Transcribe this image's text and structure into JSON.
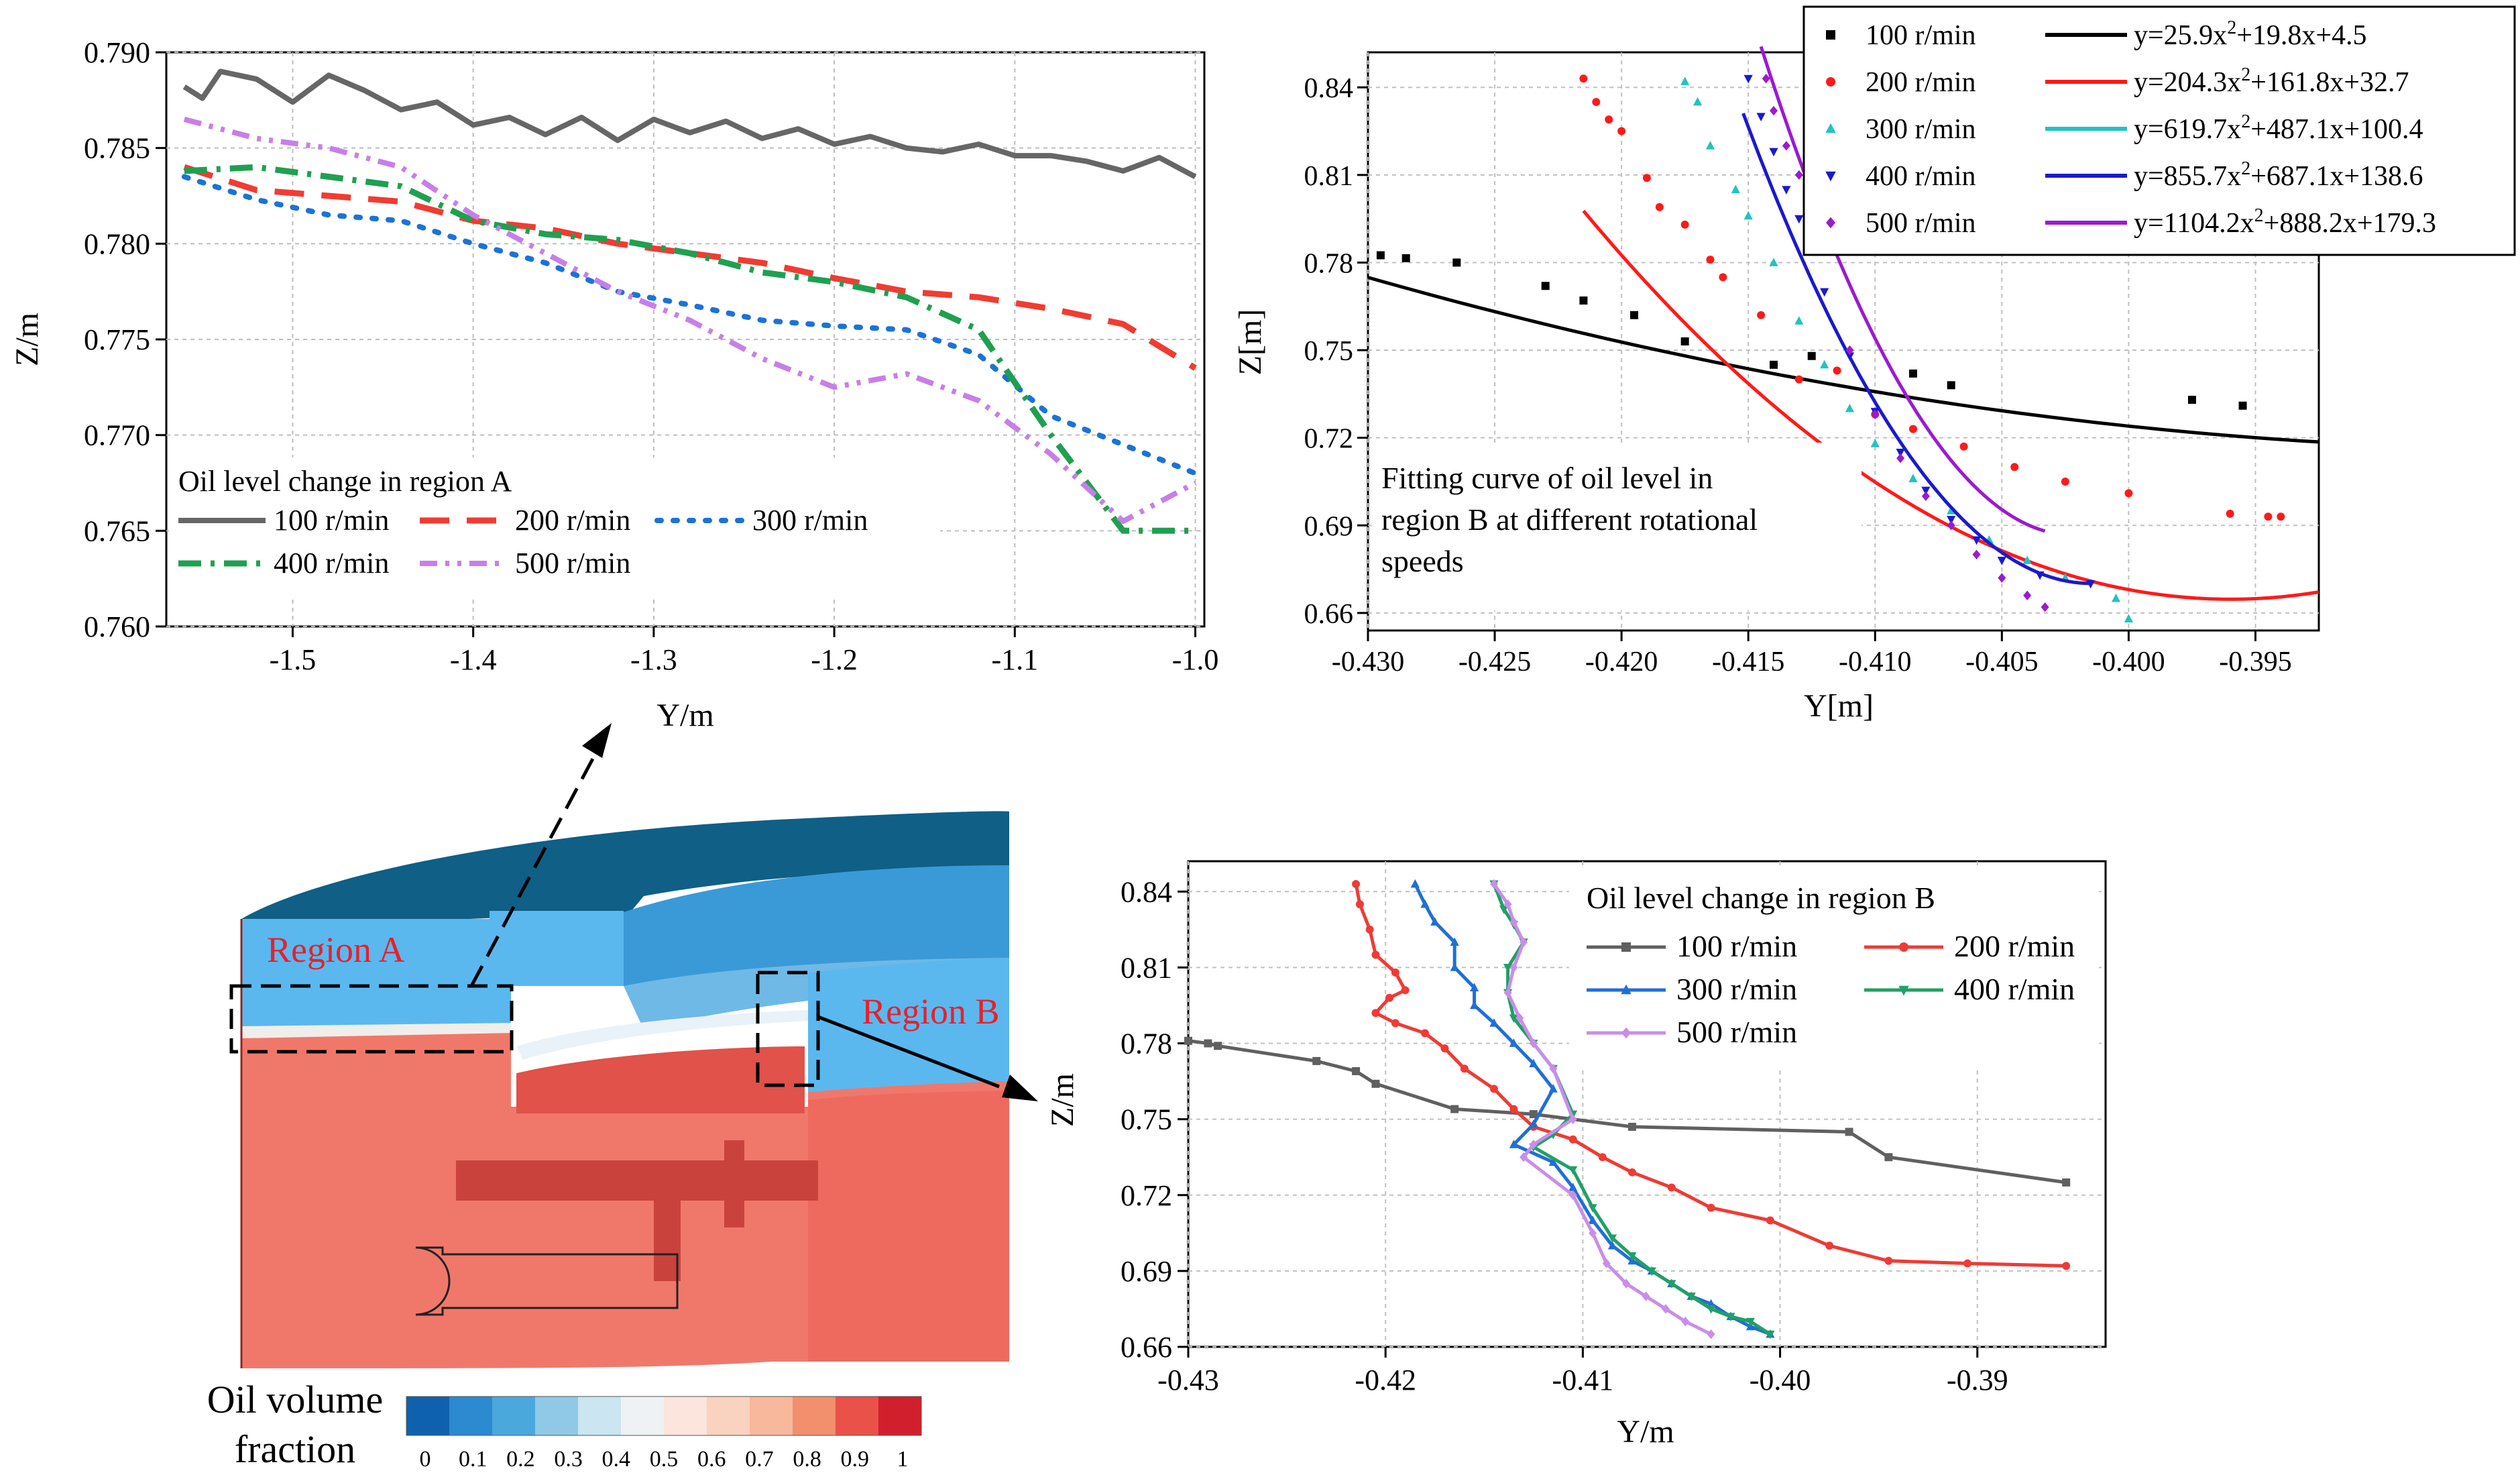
{
  "colors": {
    "gray": "#666666",
    "red": "#f03c32",
    "blue": "#1a73d8",
    "green": "#1fa050",
    "lilac": "#c77fe8",
    "black": "#000000",
    "fitred": "#ff1a1a",
    "cyan": "#22c3c3",
    "navy": "#1a1acc",
    "purple": "#9c1ad0",
    "c_gray": "#606060",
    "c_red": "#ee3b35",
    "c_blue": "#1f6fd6",
    "c_green": "#21a067",
    "c_lilac": "#c98ee8"
  },
  "chart_data": [
    {
      "id": "A",
      "type": "line",
      "title": "Oil level change in region A",
      "xlabel": "Y/m",
      "ylabel": "Z/m",
      "xlim": [
        -1.57,
        -0.995
      ],
      "ylim": [
        0.76,
        0.79
      ],
      "xticks": [
        "-1.5",
        "-1.4",
        "-1.3",
        "-1.2",
        "-1.1",
        "-1.0"
      ],
      "yticks": [
        "0.760",
        "0.765",
        "0.770",
        "0.775",
        "0.780",
        "0.785",
        "0.790"
      ],
      "grid": true,
      "legend": "lower-left",
      "series": [
        {
          "name": "100 r/min",
          "x": [
            -1.56,
            -1.55,
            -1.54,
            -1.52,
            -1.5,
            -1.48,
            -1.46,
            -1.44,
            -1.42,
            -1.4,
            -1.38,
            -1.36,
            -1.34,
            -1.32,
            -1.3,
            -1.28,
            -1.26,
            -1.24,
            -1.22,
            -1.2,
            -1.18,
            -1.16,
            -1.14,
            -1.12,
            -1.1,
            -1.08,
            -1.06,
            -1.04,
            -1.02,
            -1.0
          ],
          "values": [
            0.7882,
            0.7876,
            0.789,
            0.7886,
            0.7874,
            0.7888,
            0.788,
            0.787,
            0.7874,
            0.7862,
            0.7866,
            0.7857,
            0.7866,
            0.7854,
            0.7865,
            0.7858,
            0.7864,
            0.7855,
            0.786,
            0.7852,
            0.7856,
            0.785,
            0.7848,
            0.7852,
            0.7846,
            0.7846,
            0.7843,
            0.7838,
            0.7845,
            0.7835
          ]
        },
        {
          "name": "200 r/min",
          "x": [
            -1.56,
            -1.52,
            -1.48,
            -1.44,
            -1.4,
            -1.36,
            -1.32,
            -1.28,
            -1.24,
            -1.2,
            -1.16,
            -1.12,
            -1.08,
            -1.04,
            -1.0
          ],
          "values": [
            0.784,
            0.7828,
            0.7825,
            0.7822,
            0.7812,
            0.7808,
            0.78,
            0.7795,
            0.779,
            0.7782,
            0.7775,
            0.7772,
            0.7766,
            0.7758,
            0.7735
          ]
        },
        {
          "name": "300 r/min",
          "x": [
            -1.56,
            -1.52,
            -1.48,
            -1.44,
            -1.4,
            -1.36,
            -1.32,
            -1.28,
            -1.24,
            -1.2,
            -1.16,
            -1.12,
            -1.08,
            -1.04,
            -1.0
          ],
          "values": [
            0.7835,
            0.7823,
            0.7815,
            0.7812,
            0.78,
            0.779,
            0.7775,
            0.7768,
            0.776,
            0.7757,
            0.7755,
            0.7742,
            0.771,
            0.7695,
            0.768
          ]
        },
        {
          "name": "400 r/min",
          "x": [
            -1.56,
            -1.52,
            -1.48,
            -1.44,
            -1.4,
            -1.36,
            -1.32,
            -1.28,
            -1.24,
            -1.2,
            -1.16,
            -1.12,
            -1.08,
            -1.04,
            -1.0
          ],
          "values": [
            0.7838,
            0.784,
            0.7835,
            0.783,
            0.7812,
            0.7805,
            0.7802,
            0.7795,
            0.7785,
            0.778,
            0.7772,
            0.7755,
            0.77,
            0.765,
            0.765
          ]
        },
        {
          "name": "500 r/min",
          "x": [
            -1.56,
            -1.52,
            -1.48,
            -1.44,
            -1.4,
            -1.36,
            -1.32,
            -1.28,
            -1.24,
            -1.2,
            -1.16,
            -1.12,
            -1.08,
            -1.04,
            -1.0
          ],
          "values": [
            0.7865,
            0.7855,
            0.785,
            0.784,
            0.7815,
            0.7795,
            0.7775,
            0.776,
            0.774,
            0.7725,
            0.7732,
            0.7718,
            0.769,
            0.7655,
            0.7675
          ]
        }
      ]
    },
    {
      "id": "B_fit",
      "type": "scatter",
      "title": "Fitting curve of oil level in region B at different rotational speeds",
      "title_lines": [
        "Fitting curve of oil level in",
        "region B at different rotational",
        "speeds"
      ],
      "xlabel": "Y[m]",
      "ylabel": "Z[m]",
      "xlim": [
        -0.43,
        -0.3925
      ],
      "ylim": [
        0.654,
        0.852
      ],
      "xticks": [
        "-0.430",
        "-0.425",
        "-0.420",
        "-0.415",
        "-0.410",
        "-0.405",
        "-0.400",
        "-0.395"
      ],
      "yticks": [
        "0.66",
        "0.69",
        "0.72",
        "0.75",
        "0.78",
        "0.81",
        "0.84"
      ],
      "grid": true,
      "legend": "top-right",
      "series": [
        {
          "name": "100 r/min",
          "fit": "y=25.9x²+19.8x+4.5",
          "fit_text": "y=25.9x",
          "fit_tail": "+19.8x+4.5",
          "marker": "square",
          "x": [
            -0.4295,
            -0.4285,
            -0.4265,
            -0.423,
            -0.4215,
            -0.4195,
            -0.4175,
            -0.414,
            -0.4125,
            -0.4085,
            -0.407,
            -0.3975,
            -0.3955
          ],
          "values": [
            0.7825,
            0.7815,
            0.78,
            0.772,
            0.767,
            0.762,
            0.753,
            0.745,
            0.748,
            0.742,
            0.738,
            0.733,
            0.731
          ],
          "fit_x": [
            -0.43,
            -0.3925
          ],
          "fit_coef": [
            25.9,
            19.8,
            4.5
          ]
        },
        {
          "name": "200 r/min",
          "fit": "y=204.3x²+161.8x+32.7",
          "fit_text": "y=204.3x",
          "fit_tail": "+161.8x+32.7",
          "marker": "dot",
          "x": [
            -0.4215,
            -0.421,
            -0.4205,
            -0.42,
            -0.419,
            -0.4185,
            -0.4175,
            -0.4165,
            -0.416,
            -0.4145,
            -0.413,
            -0.4115,
            -0.41,
            -0.4085,
            -0.4065,
            -0.4045,
            -0.4025,
            -0.4,
            -0.396,
            -0.3945,
            -0.394
          ],
          "values": [
            0.843,
            0.835,
            0.829,
            0.825,
            0.809,
            0.799,
            0.793,
            0.781,
            0.775,
            0.762,
            0.74,
            0.743,
            0.728,
            0.723,
            0.717,
            0.71,
            0.705,
            0.701,
            0.694,
            0.693,
            0.693
          ],
          "fit_x": [
            -0.4215,
            -0.3925
          ],
          "fit_coef": [
            204.3,
            161.8,
            32.7
          ]
        },
        {
          "name": "300 r/min",
          "fit": "y=619.7x²+487.1x+100.4",
          "fit_text": "y=619.7x",
          "fit_tail": "+487.1x+100.4",
          "marker": "triangle",
          "x": [
            -0.4175,
            -0.417,
            -0.4165,
            -0.4155,
            -0.415,
            -0.414,
            -0.413,
            -0.412,
            -0.411,
            -0.41,
            -0.4085,
            -0.407,
            -0.4055,
            -0.404,
            -0.4025,
            -0.4005,
            -0.4
          ],
          "values": [
            0.842,
            0.835,
            0.82,
            0.805,
            0.796,
            0.78,
            0.76,
            0.745,
            0.73,
            0.718,
            0.706,
            0.695,
            0.685,
            0.678,
            0.672,
            0.665,
            0.658
          ],
          "fit_x": [
            -0.4178,
            -0.4
          ],
          "fit_coef": [
            619.7,
            487.1,
            100.4
          ]
        },
        {
          "name": "400 r/min",
          "fit": "y=855.7x²+687.1x+138.6",
          "fit_text": "y=855.7x",
          "fit_tail": "+687.1x+138.6",
          "marker": "triangle-down",
          "x": [
            -0.415,
            -0.4145,
            -0.414,
            -0.4135,
            -0.413,
            -0.4125,
            -0.412,
            -0.411,
            -0.41,
            -0.409,
            -0.408,
            -0.407,
            -0.406,
            -0.405,
            -0.4035,
            -0.4015
          ],
          "values": [
            0.843,
            0.83,
            0.818,
            0.805,
            0.795,
            0.785,
            0.77,
            0.748,
            0.729,
            0.715,
            0.702,
            0.692,
            0.685,
            0.678,
            0.673,
            0.67
          ],
          "fit_x": [
            -0.4152,
            -0.4015
          ],
          "fit_coef": [
            855.7,
            687.1,
            138.6
          ]
        },
        {
          "name": "500 r/min",
          "fit": "y=1104.2x²+888.2x+179.3",
          "fit_text": "y=1104.2x",
          "fit_tail": "+888.2x+179.3",
          "marker": "diamond",
          "x": [
            -0.4143,
            -0.414,
            -0.4135,
            -0.413,
            -0.4125,
            -0.412,
            -0.411,
            -0.41,
            -0.409,
            -0.408,
            -0.407,
            -0.406,
            -0.405,
            -0.404,
            -0.4033
          ],
          "values": [
            0.843,
            0.832,
            0.82,
            0.81,
            0.798,
            0.785,
            0.75,
            0.728,
            0.713,
            0.7,
            0.69,
            0.68,
            0.672,
            0.666,
            0.662
          ],
          "fit_x": [
            -0.4145,
            -0.4033
          ],
          "fit_coef": [
            1104.2,
            888.2,
            179.3
          ]
        }
      ]
    },
    {
      "id": "B",
      "type": "line",
      "title": "Oil level change in region B",
      "xlabel": "Y/m",
      "ylabel": "Z/m",
      "xlim": [
        -0.43,
        -0.3835
      ],
      "ylim": [
        0.66,
        0.852
      ],
      "xticks": [
        "-0.43",
        "-0.42",
        "-0.41",
        "-0.40",
        "-0.39"
      ],
      "yticks": [
        "0.66",
        "0.69",
        "0.72",
        "0.75",
        "0.78",
        "0.81",
        "0.84"
      ],
      "grid": true,
      "legend": "top-right",
      "series": [
        {
          "name": "100 r/min",
          "x": [
            -0.43,
            -0.429,
            -0.4285,
            -0.4235,
            -0.4215,
            -0.4205,
            -0.4165,
            -0.4125,
            -0.4075,
            -0.3965,
            -0.3945,
            -0.3855
          ],
          "values": [
            0.781,
            0.78,
            0.779,
            0.773,
            0.769,
            0.764,
            0.754,
            0.752,
            0.747,
            0.745,
            0.735,
            0.725
          ]
        },
        {
          "name": "200 r/min",
          "x": [
            -0.4215,
            -0.4213,
            -0.4208,
            -0.4205,
            -0.4195,
            -0.419,
            -0.4198,
            -0.4205,
            -0.4195,
            -0.418,
            -0.417,
            -0.416,
            -0.4145,
            -0.4135,
            -0.4125,
            -0.4105,
            -0.409,
            -0.4075,
            -0.4055,
            -0.4035,
            -0.4005,
            -0.3975,
            -0.3945,
            -0.3905,
            -0.3855
          ],
          "values": [
            0.843,
            0.835,
            0.825,
            0.815,
            0.808,
            0.801,
            0.798,
            0.792,
            0.788,
            0.784,
            0.778,
            0.77,
            0.762,
            0.754,
            0.747,
            0.742,
            0.735,
            0.729,
            0.723,
            0.715,
            0.71,
            0.7,
            0.694,
            0.693,
            0.692
          ]
        },
        {
          "name": "300 r/min",
          "x": [
            -0.4185,
            -0.418,
            -0.4175,
            -0.4165,
            -0.4165,
            -0.4155,
            -0.4155,
            -0.4145,
            -0.4135,
            -0.4125,
            -0.4115,
            -0.4125,
            -0.4135,
            -0.4115,
            -0.4105,
            -0.4095,
            -0.4085,
            -0.4075,
            -0.4065,
            -0.4055,
            -0.4045,
            -0.4035,
            -0.4025,
            -0.4015,
            -0.4005
          ],
          "values": [
            0.843,
            0.835,
            0.828,
            0.82,
            0.81,
            0.802,
            0.795,
            0.788,
            0.78,
            0.772,
            0.762,
            0.748,
            0.74,
            0.733,
            0.723,
            0.71,
            0.7,
            0.694,
            0.69,
            0.685,
            0.68,
            0.677,
            0.672,
            0.668,
            0.665
          ]
        },
        {
          "name": "400 r/min",
          "x": [
            -0.4145,
            -0.414,
            -0.4135,
            -0.413,
            -0.4138,
            -0.4138,
            -0.4135,
            -0.4125,
            -0.4115,
            -0.4105,
            -0.4115,
            -0.4125,
            -0.4105,
            -0.4095,
            -0.4085,
            -0.4075,
            -0.4065,
            -0.4055,
            -0.4045,
            -0.4035,
            -0.4025,
            -0.4015,
            -0.4005
          ],
          "values": [
            0.843,
            0.833,
            0.827,
            0.82,
            0.81,
            0.8,
            0.79,
            0.78,
            0.77,
            0.752,
            0.744,
            0.739,
            0.73,
            0.715,
            0.703,
            0.696,
            0.69,
            0.685,
            0.68,
            0.675,
            0.672,
            0.67,
            0.665
          ]
        },
        {
          "name": "500 r/min",
          "x": [
            -0.4145,
            -0.4138,
            -0.4135,
            -0.413,
            -0.4135,
            -0.4138,
            -0.4132,
            -0.4125,
            -0.4115,
            -0.4105,
            -0.4125,
            -0.413,
            -0.4105,
            -0.4095,
            -0.4088,
            -0.4078,
            -0.4068,
            -0.4058,
            -0.4048,
            -0.4035
          ],
          "values": [
            0.843,
            0.835,
            0.828,
            0.82,
            0.81,
            0.8,
            0.79,
            0.78,
            0.77,
            0.75,
            0.74,
            0.735,
            0.72,
            0.705,
            0.693,
            0.685,
            0.68,
            0.675,
            0.67,
            0.665
          ]
        }
      ]
    }
  ],
  "annotations": {
    "region_a": "Region A",
    "region_b": "Region B"
  },
  "colorbar": {
    "title_lines": [
      "Oil volume",
      "fraction"
    ],
    "colors": [
      "#0e62ad",
      "#2b8ad0",
      "#4ba8dc",
      "#8fc9e6",
      "#cbe5f1",
      "#eef2f4",
      "#fbe5dc",
      "#f9d2c0",
      "#f7b89c",
      "#f28f6d",
      "#ea5148",
      "#d11f2d"
    ],
    "labels": [
      "0",
      "0.1",
      "0.2",
      "0.3",
      "0.4",
      "0.5",
      "0.6",
      "0.7",
      "0.8",
      "0.9",
      "1"
    ]
  }
}
